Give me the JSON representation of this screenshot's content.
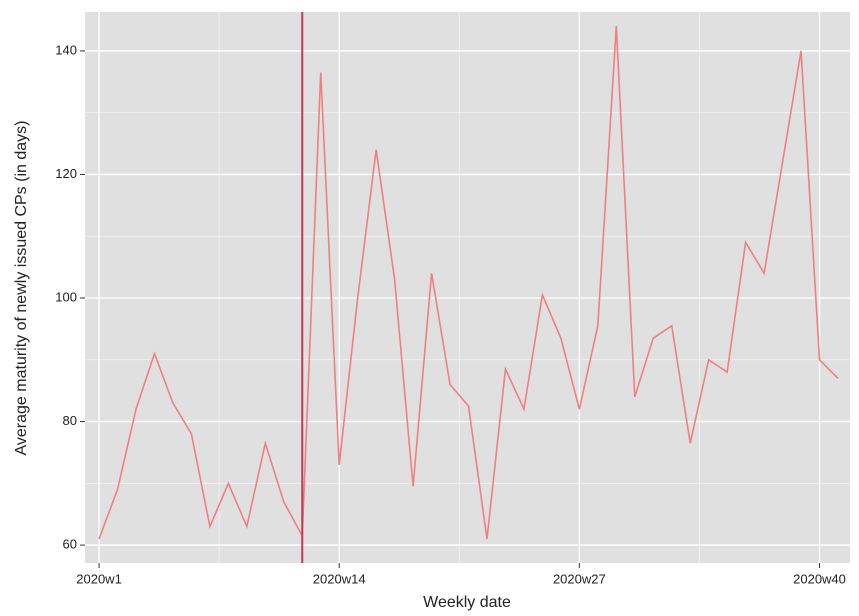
{
  "chart_data": {
    "type": "line",
    "xlabel": "Weekly date",
    "ylabel": "Average maturity of newly issued CPs (in days)",
    "x": [
      1,
      2,
      3,
      4,
      5,
      6,
      7,
      8,
      9,
      10,
      11,
      12,
      13,
      14,
      15,
      16,
      17,
      18,
      19,
      20,
      21,
      22,
      23,
      24,
      25,
      26,
      27,
      28,
      29,
      30,
      31,
      32,
      33,
      34,
      35,
      36,
      37,
      38,
      39,
      40,
      41
    ],
    "values": [
      61,
      69,
      82,
      91,
      83,
      78,
      63,
      70,
      63,
      76.5,
      67,
      61.5,
      136.5,
      73,
      100,
      124,
      103,
      69.5,
      104,
      86,
      82.5,
      61,
      88.5,
      82,
      100.5,
      93.5,
      82,
      95.5,
      144,
      84,
      93.5,
      95.5,
      76.5,
      90,
      88,
      109,
      104,
      122,
      140,
      90,
      87
    ],
    "color": "#f08080",
    "vline": 12,
    "vline_color": "#c0395a",
    "xlim": [
      0.24,
      41.65
    ],
    "ylim": [
      57.1,
      146.3
    ],
    "xticks": [
      {
        "value": 1,
        "label": "2020w1"
      },
      {
        "value": 14,
        "label": "2020w14"
      },
      {
        "value": 27,
        "label": "2020w27"
      },
      {
        "value": 40,
        "label": "2020w40"
      }
    ],
    "yticks": [
      60,
      80,
      100,
      120,
      140
    ],
    "grid": true
  }
}
